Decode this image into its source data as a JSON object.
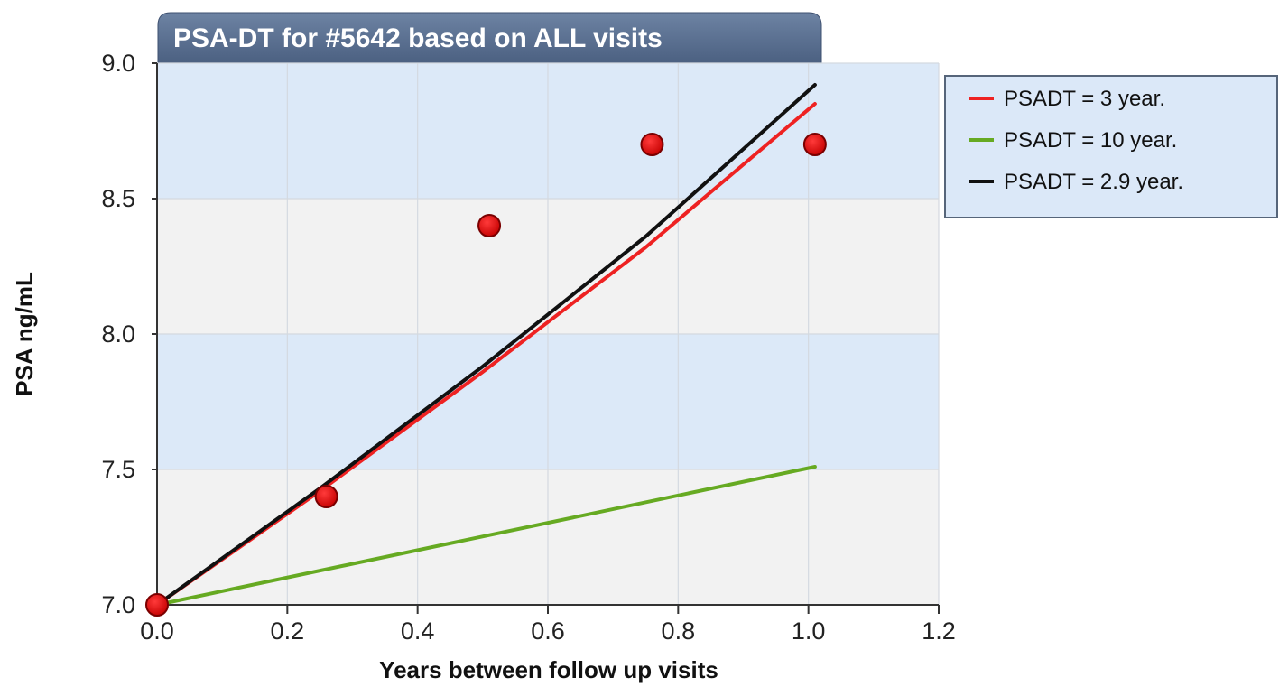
{
  "chart_data": {
    "type": "scatter",
    "title": "PSA-DT for #5642 based on ALL visits",
    "xlabel": "Years between follow up visits",
    "ylabel": "PSA ng/mL",
    "xlim": [
      0.0,
      1.2
    ],
    "ylim": [
      7.0,
      9.0
    ],
    "x_ticks": [
      "0.0",
      "0.2",
      "0.4",
      "0.6",
      "0.8",
      "1.0",
      "1.2"
    ],
    "y_ticks": [
      "7.0",
      "7.5",
      "8.0",
      "8.5",
      "9.0"
    ],
    "grid": true,
    "legend_position": "right",
    "points": {
      "x": [
        0.0,
        0.26,
        0.51,
        0.76,
        1.01
      ],
      "y": [
        7.0,
        7.4,
        8.4,
        8.7,
        8.7
      ],
      "color": "#cc0000"
    },
    "series": [
      {
        "name": "PSADT = 3 year.",
        "color": "#ee2222",
        "x": [
          0.0,
          0.25,
          0.5,
          0.75,
          1.01
        ],
        "y": [
          7.0,
          7.42,
          7.86,
          8.32,
          8.85
        ]
      },
      {
        "name": "PSADT = 10 year.",
        "color": "#66aa22",
        "x": [
          0.0,
          1.01
        ],
        "y": [
          7.0,
          7.51
        ]
      },
      {
        "name": "PSADT = 2.9 year.",
        "color": "#111111",
        "x": [
          0.0,
          0.25,
          0.5,
          0.75,
          1.01
        ],
        "y": [
          7.0,
          7.43,
          7.88,
          8.36,
          8.92
        ]
      }
    ]
  }
}
